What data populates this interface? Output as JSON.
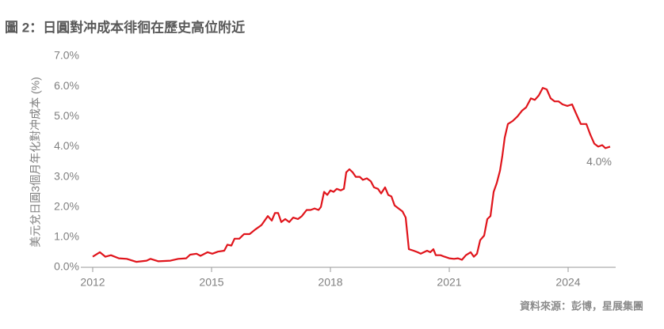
{
  "chart_data": {
    "type": "line",
    "title": "圖 2：日圓對冲成本徘徊在歷史高位附近",
    "y_label": "美元兌日圓3個月年化對冲成本 (%)",
    "source": "資料來源：彭博，星展集團",
    "annotation": "4.0%",
    "color": "#e0141b",
    "x": [
      2012.0,
      2012.18,
      2012.32,
      2012.46,
      2012.66,
      2012.86,
      2013.1,
      2013.36,
      2013.46,
      2013.66,
      2013.96,
      2014.16,
      2014.36,
      2014.46,
      2014.62,
      2014.72,
      2014.9,
      2015.02,
      2015.16,
      2015.32,
      2015.4,
      2015.5,
      2015.58,
      2015.7,
      2015.82,
      2015.96,
      2016.1,
      2016.26,
      2016.42,
      2016.52,
      2016.6,
      2016.68,
      2016.76,
      2016.86,
      2016.96,
      2017.06,
      2017.18,
      2017.28,
      2017.4,
      2017.5,
      2017.6,
      2017.7,
      2017.76,
      2017.84,
      2017.92,
      2018.0,
      2018.08,
      2018.16,
      2018.26,
      2018.34,
      2018.4,
      2018.48,
      2018.56,
      2018.64,
      2018.74,
      2018.82,
      2018.92,
      2019.02,
      2019.1,
      2019.2,
      2019.28,
      2019.38,
      2019.46,
      2019.54,
      2019.62,
      2019.72,
      2019.82,
      2019.9,
      2019.98,
      2020.1,
      2020.2,
      2020.28,
      2020.36,
      2020.44,
      2020.52,
      2020.6,
      2020.66,
      2020.78,
      2020.88,
      2021.0,
      2021.12,
      2021.22,
      2021.32,
      2021.42,
      2021.54,
      2021.62,
      2021.7,
      2021.78,
      2021.88,
      2021.96,
      2022.04,
      2022.12,
      2022.2,
      2022.28,
      2022.34,
      2022.4,
      2022.48,
      2022.6,
      2022.72,
      2022.84,
      2022.94,
      2023.06,
      2023.16,
      2023.26,
      2023.36,
      2023.46,
      2023.56,
      2023.66,
      2023.76,
      2023.86,
      2023.98,
      2024.1,
      2024.2,
      2024.32,
      2024.46,
      2024.56,
      2024.66,
      2024.76,
      2024.86,
      2024.94,
      2025.06
    ],
    "values": [
      0.35,
      0.5,
      0.35,
      0.4,
      0.3,
      0.28,
      0.18,
      0.22,
      0.28,
      0.2,
      0.22,
      0.28,
      0.3,
      0.42,
      0.45,
      0.38,
      0.5,
      0.45,
      0.52,
      0.55,
      0.75,
      0.72,
      0.95,
      0.95,
      1.1,
      1.1,
      1.25,
      1.4,
      1.7,
      1.55,
      1.8,
      1.8,
      1.5,
      1.6,
      1.5,
      1.65,
      1.6,
      1.7,
      1.9,
      1.9,
      1.95,
      1.9,
      2.0,
      2.5,
      2.4,
      2.55,
      2.5,
      2.6,
      2.55,
      2.6,
      3.15,
      3.25,
      3.15,
      3.0,
      3.0,
      2.9,
      2.95,
      2.85,
      2.65,
      2.6,
      2.45,
      2.65,
      2.4,
      2.35,
      2.05,
      1.95,
      1.85,
      1.65,
      0.6,
      0.55,
      0.5,
      0.45,
      0.5,
      0.55,
      0.5,
      0.6,
      0.4,
      0.4,
      0.35,
      0.3,
      0.28,
      0.3,
      0.25,
      0.4,
      0.5,
      0.35,
      0.45,
      0.9,
      1.05,
      1.6,
      1.7,
      2.5,
      2.8,
      3.2,
      3.7,
      4.3,
      4.75,
      4.85,
      5.0,
      5.2,
      5.3,
      5.6,
      5.55,
      5.7,
      5.95,
      5.9,
      5.6,
      5.5,
      5.5,
      5.4,
      5.35,
      5.4,
      5.1,
      4.75,
      4.75,
      4.4,
      4.1,
      4.0,
      4.05,
      3.95,
      4.0
    ],
    "xlim": [
      2011.7,
      2025.2
    ],
    "xticks": [
      2012,
      2015,
      2018,
      2021,
      2024
    ],
    "ylim": [
      0,
      7
    ],
    "yticks": [
      {
        "value": 0,
        "label": "0.0%"
      },
      {
        "value": 1,
        "label": "1.0%"
      },
      {
        "value": 2,
        "label": "2.0%"
      },
      {
        "value": 3,
        "label": "3.0%"
      },
      {
        "value": 4,
        "label": "4.0%"
      },
      {
        "value": 5,
        "label": "5.0%"
      },
      {
        "value": 6,
        "label": "6.0%"
      },
      {
        "value": 7,
        "label": "7.0%"
      }
    ],
    "grid": false
  }
}
